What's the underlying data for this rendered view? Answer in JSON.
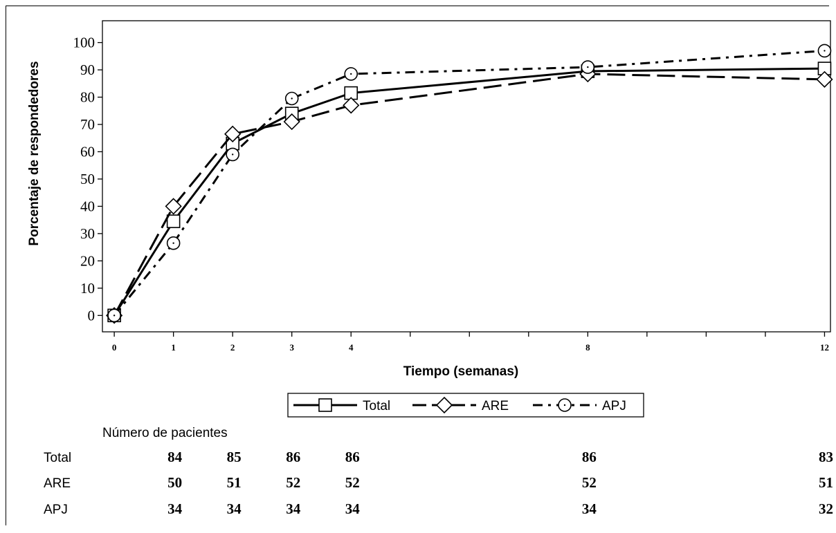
{
  "chart_data": {
    "type": "line",
    "ylabel": "Porcentaje de respondedores",
    "xlabel": "Tiempo (semanas)",
    "ylim": [
      -6,
      108
    ],
    "y_ticks": [
      0,
      10,
      20,
      30,
      40,
      50,
      60,
      70,
      80,
      90,
      100
    ],
    "x_range": [
      -0.2,
      12.1
    ],
    "x_major_ticks": [
      0,
      1,
      2,
      3,
      4,
      8,
      12
    ],
    "x_minor_ticks": [
      5,
      6,
      7,
      9,
      10,
      11
    ],
    "grid": false,
    "legend_placement": "bottom-center",
    "series": [
      {
        "name": "Total",
        "marker": "square",
        "dash": "solid",
        "x": [
          0,
          1,
          2,
          3,
          4,
          8,
          12
        ],
        "values": [
          0,
          34.5,
          63,
          74,
          81.5,
          89.5,
          90.5
        ]
      },
      {
        "name": "ARE",
        "marker": "diamond",
        "dash": "long-dash",
        "x": [
          0,
          1,
          2,
          3,
          4,
          8,
          12
        ],
        "values": [
          0,
          40,
          66.5,
          71,
          77,
          88.5,
          86.5
        ]
      },
      {
        "name": "APJ",
        "marker": "circle",
        "dash": "dash-dot",
        "x": [
          0,
          1,
          2,
          3,
          4,
          8,
          12
        ],
        "values": [
          0,
          26.5,
          59,
          79.5,
          88.5,
          91,
          97
        ]
      }
    ],
    "patients_table": {
      "title": "Número de pacientes",
      "rows": [
        {
          "label": "Total",
          "values": [
            "84",
            "85",
            "86",
            "86",
            "86",
            "83"
          ]
        },
        {
          "label": "ARE",
          "values": [
            "50",
            "51",
            "52",
            "52",
            "52",
            "51"
          ]
        },
        {
          "label": "APJ",
          "values": [
            "34",
            "34",
            "34",
            "34",
            "34",
            "32"
          ]
        }
      ],
      "x": [
        1,
        2,
        3,
        4,
        8,
        12
      ]
    }
  }
}
